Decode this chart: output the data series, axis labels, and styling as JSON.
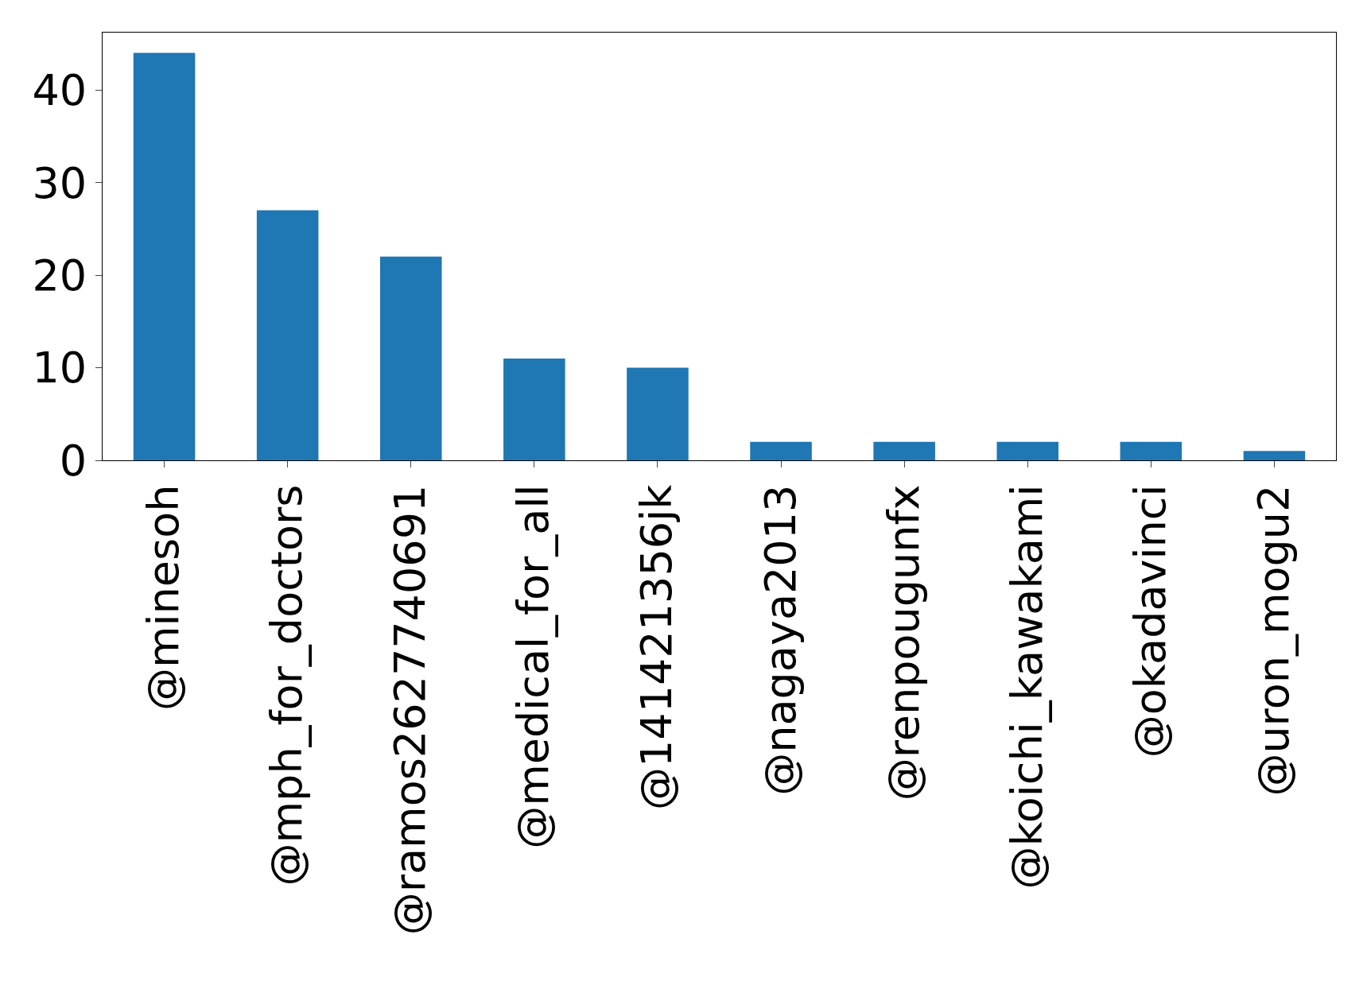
{
  "chart_data": {
    "type": "bar",
    "categories": [
      "@minesoh",
      "@mph_for_doctors",
      "@ramos2627740691",
      "@medical_for_all",
      "@141421356jk",
      "@nagaya2013",
      "@renpougunfx",
      "@koichi_kawakami",
      "@okadavinci",
      "@uron_mogu2"
    ],
    "values": [
      44,
      27,
      22,
      11,
      10,
      2,
      2,
      2,
      2,
      1
    ],
    "color": "#1f77b4",
    "ylim": [
      0,
      46.2
    ],
    "yticks": [
      0,
      10,
      20,
      30,
      40
    ]
  }
}
